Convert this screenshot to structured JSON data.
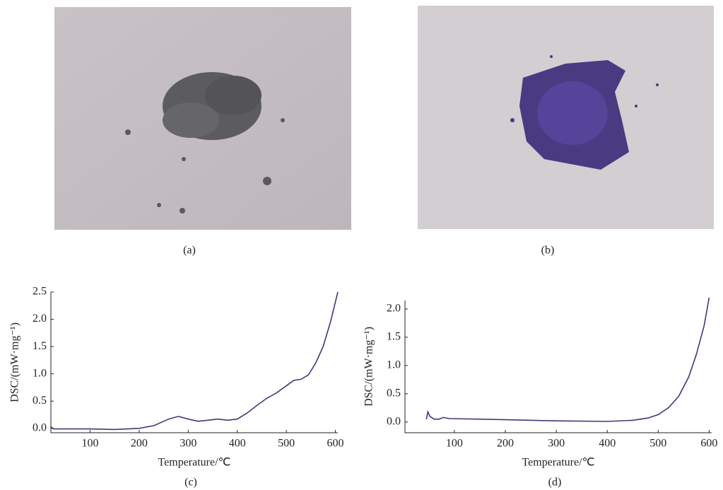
{
  "photos": [
    {
      "caption": "(a)"
    },
    {
      "caption": "(b)"
    }
  ],
  "chart_data": [
    {
      "type": "line",
      "caption": "(c)",
      "x_label": "Temperature/℃",
      "y_label": "DSC/(mW·mg⁻¹)",
      "xlim": [
        20,
        605
      ],
      "ylim": [
        -0.08,
        2.5
      ],
      "xticks": [
        100,
        200,
        300,
        400,
        500,
        600
      ],
      "yticks": [
        {
          "value": 0,
          "label": "0.0"
        },
        {
          "value": 0.5,
          "label": "0.5"
        },
        {
          "value": 1,
          "label": "1.0"
        },
        {
          "value": 1.5,
          "label": "1.5"
        },
        {
          "value": 2,
          "label": "2.0"
        },
        {
          "value": 2.5,
          "label": "2.5"
        }
      ],
      "series": [
        {
          "color": "#3b3a7c",
          "x": [
            20,
            25,
            50,
            100,
            150,
            200,
            230,
            260,
            280,
            300,
            320,
            340,
            360,
            380,
            400,
            420,
            440,
            460,
            480,
            500,
            515,
            530,
            545,
            560,
            575,
            590,
            605
          ],
          "values": [
            0.03,
            -0.01,
            -0.01,
            -0.01,
            -0.02,
            0.0,
            0.05,
            0.17,
            0.22,
            0.17,
            0.13,
            0.15,
            0.17,
            0.15,
            0.17,
            0.28,
            0.42,
            0.55,
            0.65,
            0.78,
            0.88,
            0.9,
            0.98,
            1.2,
            1.5,
            1.95,
            2.5
          ]
        }
      ]
    },
    {
      "type": "line",
      "caption": "(d)",
      "x_label": "Temperature/℃",
      "y_label": "DSC/(mW·mg⁻¹)",
      "xlim": [
        3,
        605
      ],
      "ylim": [
        -0.19,
        2.15
      ],
      "xticks": [
        100,
        200,
        300,
        400,
        500,
        600
      ],
      "yticks": [
        {
          "value": 0,
          "label": "0.0"
        },
        {
          "value": 0.5,
          "label": "0.5"
        },
        {
          "value": 1,
          "label": "1.0"
        },
        {
          "value": 1.5,
          "label": "1.5"
        },
        {
          "value": 2,
          "label": "2.0"
        }
      ],
      "series": [
        {
          "color": "#3b3a7c",
          "x": [
            45,
            48,
            52,
            60,
            70,
            78,
            90,
            150,
            200,
            300,
            400,
            450,
            480,
            500,
            520,
            540,
            560,
            575,
            590,
            600
          ],
          "values": [
            0.05,
            0.18,
            0.1,
            0.05,
            0.05,
            0.08,
            0.06,
            0.05,
            0.04,
            0.02,
            0.01,
            0.03,
            0.07,
            0.13,
            0.25,
            0.45,
            0.8,
            1.2,
            1.7,
            2.2
          ]
        }
      ]
    }
  ]
}
